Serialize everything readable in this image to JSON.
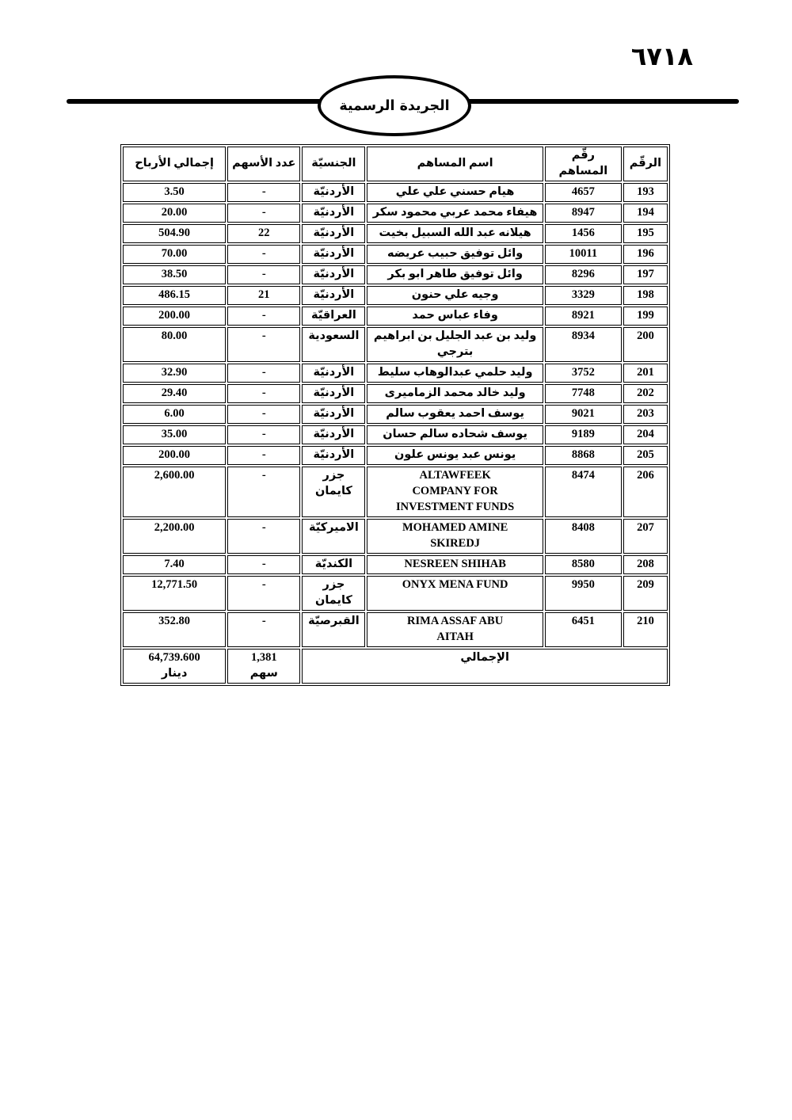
{
  "page": {
    "page_number": "٦٧١٨",
    "banner_title": "الجريدة الرسمية"
  },
  "table": {
    "headers": {
      "no": "الرقّم",
      "shareholder_no": "رقّم المساهم",
      "name": "اسم المساهم",
      "nationality": "الجنسيّة",
      "shares": "عدد الأسهم",
      "profit": "إجمالي الأرباح"
    },
    "rows": [
      {
        "no": "193",
        "shareholder_no": "4657",
        "name": "هيام حسني علي علي",
        "nationality": "الأردنيّة",
        "shares": "-",
        "profit": "3.50"
      },
      {
        "no": "194",
        "shareholder_no": "8947",
        "name": "هيفاء محمد عربي محمود سكر",
        "nationality": "الأردنيّة",
        "shares": "-",
        "profit": "20.00"
      },
      {
        "no": "195",
        "shareholder_no": "1456",
        "name": "هيلانه عبد الله السبيل بخيت",
        "nationality": "الأردنيّة",
        "shares": "22",
        "profit": "504.90"
      },
      {
        "no": "196",
        "shareholder_no": "10011",
        "name": "وائل توفيق حبيب عريضه",
        "nationality": "الأردنيّة",
        "shares": "-",
        "profit": "70.00"
      },
      {
        "no": "197",
        "shareholder_no": "8296",
        "name": "وائل توفيق طاهر ابو بكر",
        "nationality": "الأردنيّة",
        "shares": "-",
        "profit": "38.50"
      },
      {
        "no": "198",
        "shareholder_no": "3329",
        "name": "وجيه علي حنون",
        "nationality": "الأردنيّة",
        "shares": "21",
        "profit": "486.15"
      },
      {
        "no": "199",
        "shareholder_no": "8921",
        "name": "وفاء عباس حمد",
        "nationality": "العراقيّة",
        "shares": "-",
        "profit": "200.00"
      },
      {
        "no": "200",
        "shareholder_no": "8934",
        "name": "وليد بن عبد الجليل بن ابراهيم\nبترجي",
        "nationality": "السعودية",
        "shares": "-",
        "profit": "80.00"
      },
      {
        "no": "201",
        "shareholder_no": "3752",
        "name": "وليد حلمي عبدالوهاب سليط",
        "nationality": "الأردنيّة",
        "shares": "-",
        "profit": "32.90"
      },
      {
        "no": "202",
        "shareholder_no": "7748",
        "name": "وليد خالد محمد الزماميرى",
        "nationality": "الأردنيّة",
        "shares": "-",
        "profit": "29.40"
      },
      {
        "no": "203",
        "shareholder_no": "9021",
        "name": "يوسف احمد يعقوب سالم",
        "nationality": "الأردنيّة",
        "shares": "-",
        "profit": "6.00"
      },
      {
        "no": "204",
        "shareholder_no": "9189",
        "name": "يوسف شحاده سالم حسان",
        "nationality": "الأردنيّة",
        "shares": "-",
        "profit": "35.00"
      },
      {
        "no": "205",
        "shareholder_no": "8868",
        "name": "يونس عبد يونس علون",
        "nationality": "الأردنيّة",
        "shares": "-",
        "profit": "200.00"
      },
      {
        "no": "206",
        "shareholder_no": "8474",
        "name": "ALTAWFEEK\nCOMPANY FOR\nINVESTMENT FUNDS",
        "nationality": "جزر\nكايمان",
        "shares": "-",
        "profit": "2,600.00"
      },
      {
        "no": "207",
        "shareholder_no": "8408",
        "name": "MOHAMED AMINE\nSKIREDJ",
        "nationality": "الاميركيّة",
        "shares": "-",
        "profit": "2,200.00"
      },
      {
        "no": "208",
        "shareholder_no": "8580",
        "name": "NESREEN SHIHAB",
        "nationality": "الكنديّة",
        "shares": "-",
        "profit": "7.40"
      },
      {
        "no": "209",
        "shareholder_no": "9950",
        "name": "ONYX MENA FUND",
        "nationality": "جزر\nكايمان",
        "shares": "-",
        "profit": "12,771.50"
      },
      {
        "no": "210",
        "shareholder_no": "6451",
        "name": "RIMA ASSAF ABU\nAITAH",
        "nationality": "القبرصيّة",
        "shares": "-",
        "profit": "352.80"
      }
    ],
    "total": {
      "label": "الإجمالي",
      "shares_value": "1,381",
      "shares_unit": "سهم",
      "profit_value": "64,739.600",
      "profit_unit": "دينار"
    }
  }
}
